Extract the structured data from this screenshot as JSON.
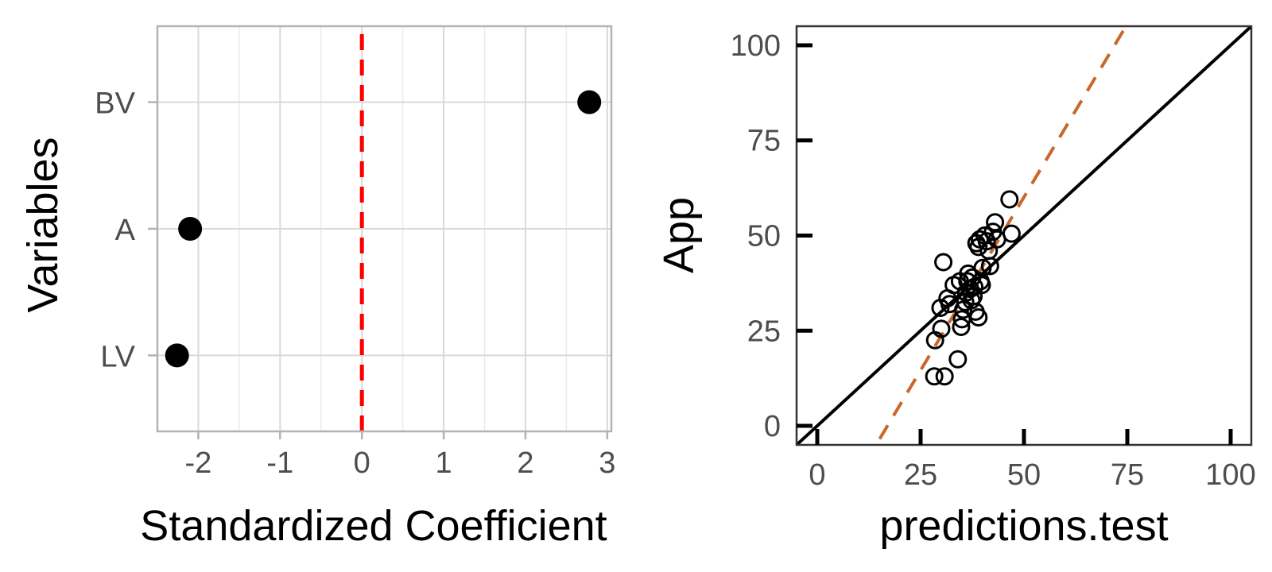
{
  "colors": {
    "background": "#ffffff",
    "panel_border_left": "#b3b3b3",
    "panel_border_right": "#333333",
    "grid_major": "#d9d9d9",
    "grid_minor": "#ebebeb",
    "tick_text": "#4d4d4d",
    "title_text": "#000000",
    "point": "#000000",
    "zero_line": "#ff0000",
    "identity_line": "#000000",
    "fit_line": "#c8682a"
  },
  "chart_data": [
    {
      "type": "scatter",
      "title": "",
      "xlabel": "Standardized Coefficient",
      "ylabel": "Variables",
      "categories": [
        "BV",
        "A",
        "LV"
      ],
      "values": [
        2.78,
        -2.1,
        -2.26
      ],
      "xlim": [
        -2.5,
        3.05
      ],
      "x_ticks": [
        -2,
        -1,
        0,
        1,
        2,
        3
      ],
      "x_tick_labels": [
        "-2",
        "-1",
        "0",
        "1",
        "2",
        "3"
      ],
      "reference_line": {
        "x": 0,
        "style": "dashed",
        "color": "#ff0000"
      },
      "grid": true,
      "legend": "none"
    },
    {
      "type": "scatter",
      "title": "",
      "xlabel": "predictions.test",
      "ylabel": "App",
      "xlim": [
        -5,
        105
      ],
      "ylim": [
        -5,
        105
      ],
      "x_ticks": [
        0,
        25,
        50,
        75,
        100
      ],
      "x_tick_labels": [
        "0",
        "25",
        "50",
        "75",
        "100"
      ],
      "y_ticks": [
        0,
        25,
        50,
        75,
        100
      ],
      "y_tick_labels": [
        "0",
        "25",
        "50",
        "75",
        "100"
      ],
      "grid": false,
      "legend": "none",
      "marker": "open-circle",
      "lines": [
        {
          "kind": "identity",
          "style": "solid",
          "color": "#000000",
          "slope": 1,
          "intercept": 0
        },
        {
          "kind": "fit",
          "style": "dashed",
          "color": "#c8682a",
          "slope": 1.82,
          "intercept": -30.9
        }
      ],
      "points": [
        {
          "x": 28.5,
          "y": 22.5
        },
        {
          "x": 29.8,
          "y": 31.0
        },
        {
          "x": 30.0,
          "y": 25.5
        },
        {
          "x": 28.3,
          "y": 13.0
        },
        {
          "x": 30.8,
          "y": 13.0
        },
        {
          "x": 30.5,
          "y": 43.0
        },
        {
          "x": 31.5,
          "y": 33.5
        },
        {
          "x": 32.0,
          "y": 32.0
        },
        {
          "x": 33.0,
          "y": 37.0
        },
        {
          "x": 34.5,
          "y": 38.0
        },
        {
          "x": 34.0,
          "y": 17.5
        },
        {
          "x": 34.8,
          "y": 26.0
        },
        {
          "x": 35.0,
          "y": 28.0
        },
        {
          "x": 35.3,
          "y": 30.5
        },
        {
          "x": 35.8,
          "y": 32.5
        },
        {
          "x": 36.0,
          "y": 35.0
        },
        {
          "x": 36.3,
          "y": 38.0
        },
        {
          "x": 36.5,
          "y": 40.0
        },
        {
          "x": 37.0,
          "y": 36.0
        },
        {
          "x": 37.3,
          "y": 33.0
        },
        {
          "x": 37.5,
          "y": 39.0
        },
        {
          "x": 37.8,
          "y": 34.0
        },
        {
          "x": 38.0,
          "y": 36.5
        },
        {
          "x": 38.3,
          "y": 30.0
        },
        {
          "x": 38.5,
          "y": 48.0
        },
        {
          "x": 39.0,
          "y": 47.0
        },
        {
          "x": 39.0,
          "y": 28.5
        },
        {
          "x": 39.3,
          "y": 49.0
        },
        {
          "x": 39.5,
          "y": 38.0
        },
        {
          "x": 39.8,
          "y": 37.0
        },
        {
          "x": 40.0,
          "y": 41.5
        },
        {
          "x": 40.5,
          "y": 50.0
        },
        {
          "x": 41.0,
          "y": 48.5
        },
        {
          "x": 41.5,
          "y": 46.0
        },
        {
          "x": 41.8,
          "y": 42.0
        },
        {
          "x": 42.5,
          "y": 51.0
        },
        {
          "x": 43.0,
          "y": 53.5
        },
        {
          "x": 43.5,
          "y": 49.0
        },
        {
          "x": 46.5,
          "y": 59.5
        },
        {
          "x": 47.0,
          "y": 50.5
        }
      ]
    }
  ]
}
